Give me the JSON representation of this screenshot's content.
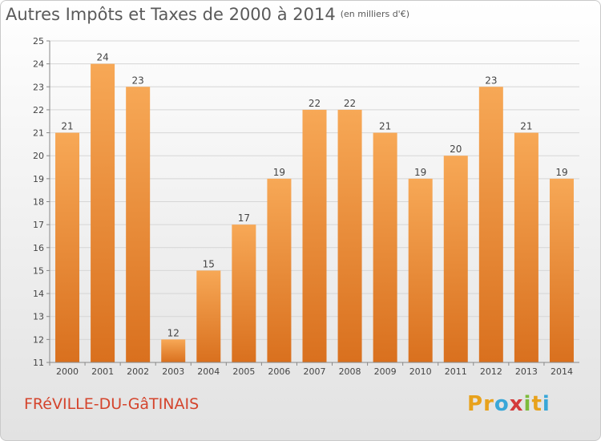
{
  "title": "Autres Impôts et Taxes de 2000 à 2014",
  "unit": "(en milliers d'€)",
  "town": "FRéVILLE-DU-GâTINAIS",
  "logo": {
    "letters": [
      "P",
      "r",
      "o",
      "x",
      "i",
      "t",
      "i"
    ],
    "colors": [
      "#e8a21c",
      "#e8a21c",
      "#39a7d8",
      "#d43a3a",
      "#7dbb3c",
      "#e8a21c",
      "#39a7d8"
    ]
  },
  "colors": {
    "bar_top": "#f7a856",
    "bar_bottom": "#d9701e",
    "grid": "#d6d6d6",
    "axis_text": "#444444"
  },
  "chart_data": {
    "type": "bar",
    "categories": [
      "2000",
      "2001",
      "2002",
      "2003",
      "2004",
      "2005",
      "2006",
      "2007",
      "2008",
      "2009",
      "2010",
      "2011",
      "2012",
      "2013",
      "2014"
    ],
    "values": [
      21,
      24,
      23,
      12,
      15,
      17,
      19,
      22,
      22,
      21,
      19,
      20,
      23,
      21,
      19
    ],
    "ylim": [
      11,
      25
    ],
    "yticks": [
      11,
      12,
      13,
      14,
      15,
      16,
      17,
      18,
      19,
      20,
      21,
      22,
      23,
      24,
      25
    ],
    "grid": true,
    "legend": "none"
  }
}
